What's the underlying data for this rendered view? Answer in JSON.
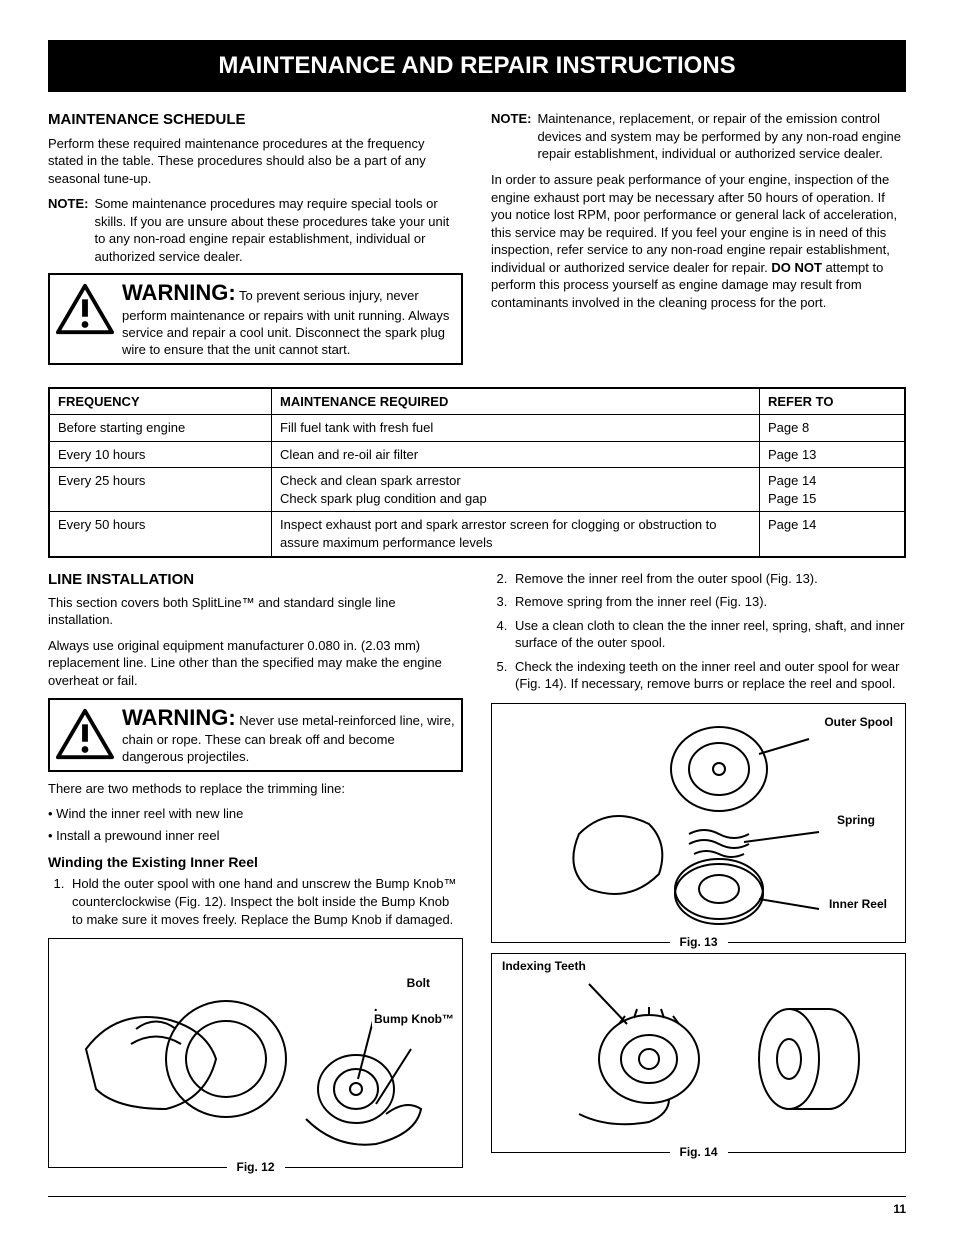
{
  "banner": "MAINTENANCE AND REPAIR INSTRUCTIONS",
  "left1": {
    "heading": "MAINTENANCE SCHEDULE",
    "intro": "Perform these required maintenance procedures at the frequency stated in the table. These procedures should also be a part of any seasonal tune-up.",
    "note_label": "NOTE:",
    "note_body": "Some maintenance procedures may require special tools or skills. If you are unsure about these procedures take your unit to any non-road engine repair establishment, individual or authorized service dealer.",
    "warn_label": "WARNING:",
    "warn_body": "To prevent serious injury, never perform maintenance or repairs with unit running. Always service and repair a cool unit. Disconnect the spark plug wire to ensure that the unit cannot start."
  },
  "right1": {
    "note_label": "NOTE:",
    "note_body": "Maintenance, replacement, or repair of the emission control devices and system may be performed by any non-road engine repair establishment, individual or authorized service dealer.",
    "para2a": "In order to assure peak performance of your engine, inspection of the engine exhaust port may be necessary after 50 hours of operation. If you notice lost RPM, poor performance or general lack of acceleration, this service may be required. If you feel your engine is in need of this inspection, refer service to any non-road engine repair establishment, individual or authorized service dealer for repair. ",
    "do_not": "DO NOT",
    "para2b": " attempt to perform this process yourself as engine damage may result from contaminants involved in the cleaning process for the port."
  },
  "table": {
    "headers": [
      "FREQUENCY",
      "MAINTENANCE REQUIRED",
      "REFER TO"
    ],
    "col_widths": [
      "26%",
      "57%",
      "17%"
    ],
    "rows": [
      [
        "Before starting engine",
        "Fill fuel tank with fresh fuel",
        "Page 8"
      ],
      [
        "Every 10 hours",
        "Clean and re-oil air filter",
        "Page 13"
      ],
      [
        "Every 25 hours",
        "Check and clean spark arrestor\nCheck spark plug condition and gap",
        "Page 14\nPage 15"
      ],
      [
        "Every 50 hours",
        "Inspect exhaust port and spark arrestor screen for clogging or obstruction to assure maximum performance levels",
        "Page 14"
      ]
    ]
  },
  "left2": {
    "heading": "LINE INSTALLATION",
    "p1": "This section covers both SplitLine™ and standard single line installation.",
    "p2": "Always use original equipment manufacturer 0.080 in. (2.03 mm) replacement line. Line other than the specified may make the engine overheat or fail.",
    "warn_label": "WARNING:",
    "warn_body": "Never use metal-reinforced line, wire, chain or rope. These can break off and become dangerous projectiles.",
    "p3": "There are two methods to replace the trimming line:",
    "bullets": [
      "Wind the inner reel with new line",
      "Install a prewound inner reel"
    ],
    "sub_h": "Winding the Existing Inner Reel",
    "step1": "Hold the outer spool with one hand and unscrew the Bump Knob™ counterclockwise (Fig. 12). Inspect the bolt inside the Bump Knob to make sure it moves freely. Replace the Bump Knob if damaged."
  },
  "right2": {
    "steps": [
      "Remove the inner reel from the outer spool (Fig. 13).",
      "Remove spring from the inner reel (Fig. 13).",
      "Use a clean cloth to clean the the inner reel, spring, shaft, and inner surface of the outer spool.",
      "Check the indexing teeth on the inner reel and outer spool for wear (Fig. 14). If necessary, remove burrs or replace the reel and spool."
    ]
  },
  "fig12": {
    "caption": "Fig. 12",
    "labels": {
      "bolt": "Bolt",
      "bump": "Bump Knob™"
    }
  },
  "fig13": {
    "caption": "Fig. 13",
    "labels": {
      "outer": "Outer Spool",
      "spring": "Spring",
      "inner": "Inner Reel"
    }
  },
  "fig14": {
    "caption": "Fig. 14",
    "labels": {
      "teeth": "Indexing Teeth"
    }
  },
  "page_number": "11",
  "colors": {
    "banner_bg": "#000000",
    "banner_fg": "#ffffff",
    "border": "#000000"
  }
}
